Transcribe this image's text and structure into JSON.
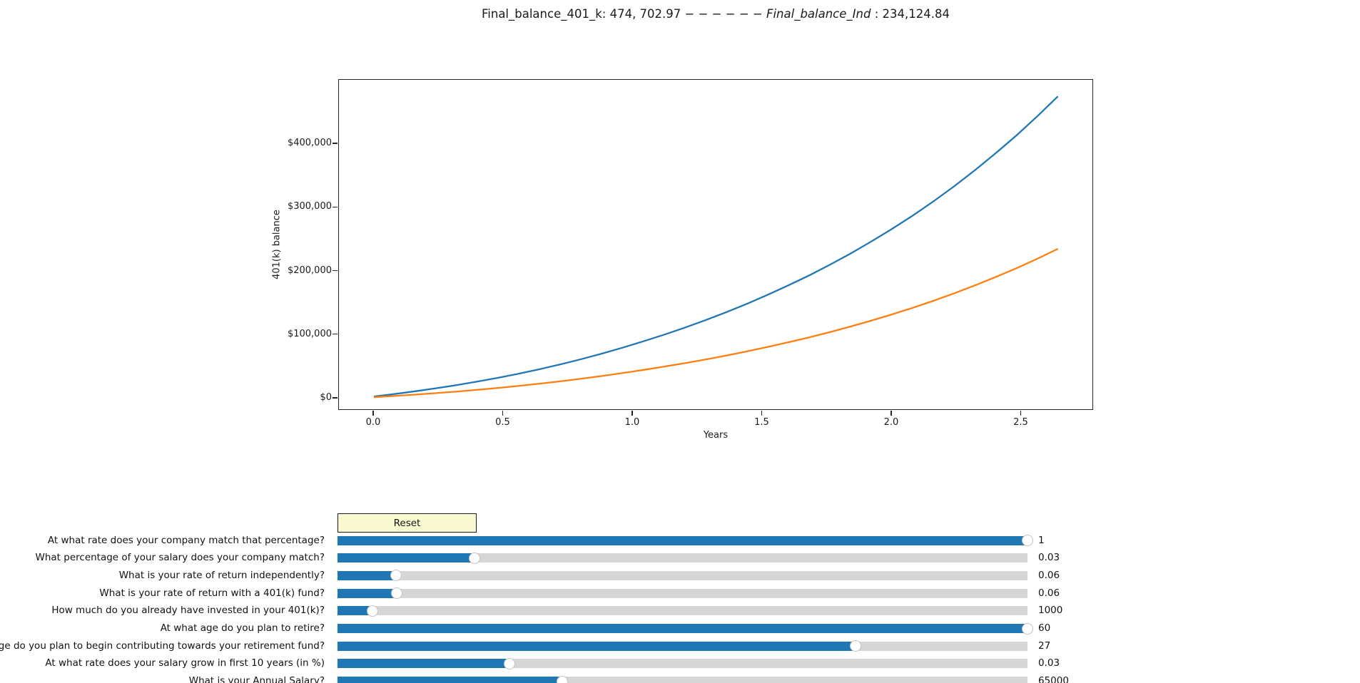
{
  "title": {
    "prefix": "Final_balance_401_k: 474, 702.97 ",
    "dashes": "− − − − − − ",
    "italic": "Final_balance_Ind",
    "suffix": " : 234,124.84"
  },
  "chart_data": {
    "type": "line",
    "title": "Final_balance_401_k: 474, 702.97 − − − − − − Final_balance_Ind : 234,124.84",
    "xlabel": "Years",
    "ylabel": "401(k) balance",
    "xlim": [
      -0.135,
      2.7796
    ],
    "ylim": [
      -19047,
      500841
    ],
    "grid": false,
    "legend": "none",
    "x_ticks": [
      0.0,
      0.5,
      1.0,
      1.5,
      2.0,
      2.5
    ],
    "x_tick_labels": [
      "0.0",
      "0.5",
      "1.0",
      "1.5",
      "2.0",
      "2.5"
    ],
    "y_ticks": [
      0,
      100000,
      200000,
      300000,
      400000
    ],
    "y_tick_labels": [
      "$0",
      "$100,000",
      "$200,000",
      "$300,000",
      "$400,000"
    ],
    "x": [
      0.0,
      0.08,
      0.16,
      0.24,
      0.321,
      0.401,
      0.481,
      0.561,
      0.641,
      0.721,
      0.802,
      0.882,
      0.962,
      1.042,
      1.122,
      1.203,
      1.283,
      1.363,
      1.443,
      1.523,
      1.603,
      1.684,
      1.764,
      1.844,
      1.924,
      2.004,
      2.085,
      2.165,
      2.245,
      2.325,
      2.405,
      2.486,
      2.566,
      2.646
    ],
    "series": [
      {
        "name": "Final_balance_401_k",
        "color": "#1f77b4",
        "final_value": 474702.97,
        "values": [
          1000,
          4960,
          9275,
          13969,
          19068,
          24602,
          30599,
          37092,
          44114,
          51701,
          59892,
          68727,
          78092,
          88018,
          98541,
          109694,
          121518,
          134050,
          147334,
          161416,
          176342,
          192164,
          208935,
          226712,
          245556,
          265531,
          286704,
          309147,
          332937,
          358155,
          384886,
          413220,
          443254,
          474703
        ]
      },
      {
        "name": "Final_balance_Ind",
        "color": "#ff7f0e",
        "final_value": 234124.84,
        "values": [
          0,
          1950,
          4076,
          6389,
          8903,
          11632,
          14590,
          17794,
          21260,
          25006,
          29051,
          33414,
          38040,
          42943,
          48140,
          53649,
          59489,
          65679,
          72240,
          79195,
          86567,
          94382,
          102666,
          111446,
          120754,
          130619,
          141077,
          152163,
          163913,
          176368,
          189571,
          203566,
          218401,
          234125
        ]
      }
    ]
  },
  "controls": {
    "reset_label": "Reset",
    "sliders": [
      {
        "label": "At what rate does your company match that percentage?",
        "value": "1",
        "fraction": 1.0
      },
      {
        "label": "What percentage of your salary does your company match?",
        "value": "0.03",
        "fraction": 0.199
      },
      {
        "label": "What is your rate of return independently?",
        "value": "0.06",
        "fraction": 0.085
      },
      {
        "label": "What is your rate of return with a 401(k) fund?",
        "value": "0.06",
        "fraction": 0.086
      },
      {
        "label": "How much do you already have invested in your 401(k)?",
        "value": "1000",
        "fraction": 0.051
      },
      {
        "label": "At what age do you plan to retire?",
        "value": "60",
        "fraction": 1.0
      },
      {
        "label": "At what age do you plan to begin contributing towards your retirement fund?",
        "value": "27",
        "fraction": 0.751
      },
      {
        "label": "At what rate does your salary grow in first 10 years (in %)",
        "value": "0.03",
        "fraction": 0.249
      },
      {
        "label": "What is your Annual Salary?",
        "value": "65000",
        "fraction": 0.326
      }
    ]
  },
  "colors": {
    "line_401k": "#1f77b4",
    "line_independent": "#ff7f0e",
    "slider_fill": "#1f77b4",
    "slider_track": "#d6d6d6",
    "button_bg": "#fafad2",
    "spine": "#262626"
  }
}
